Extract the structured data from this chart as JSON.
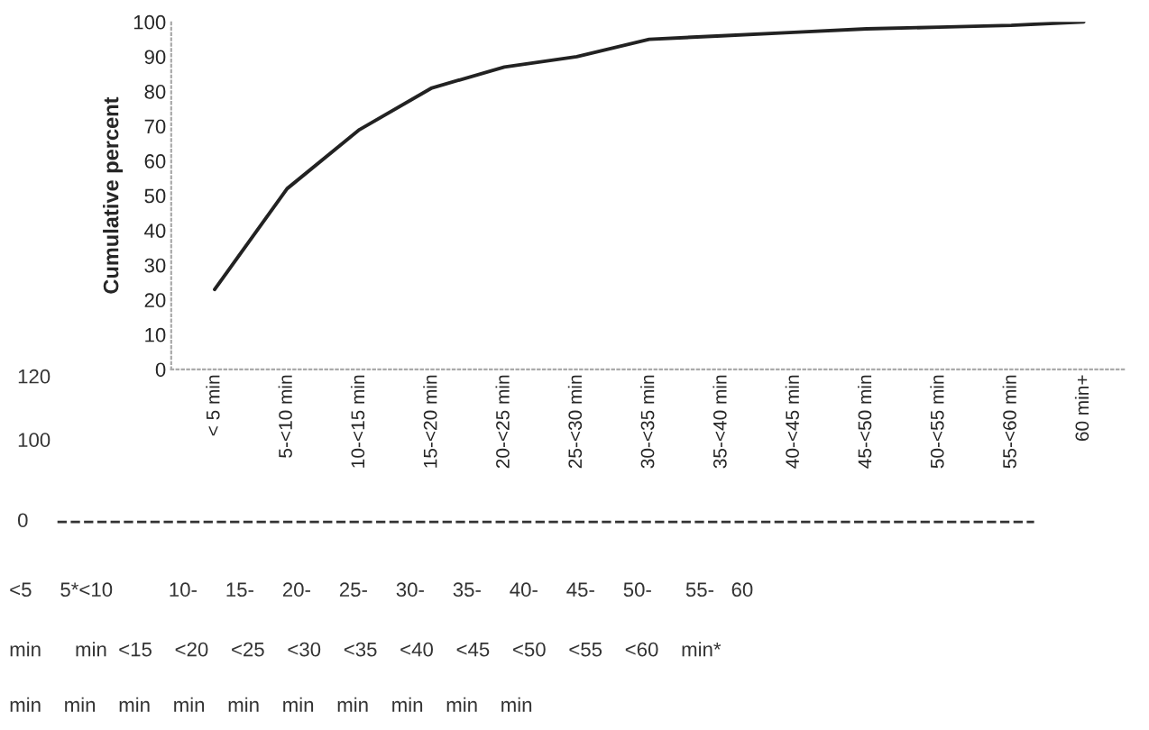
{
  "chart_data": {
    "type": "line",
    "ylabel": "Cumulative percent",
    "categories": [
      "< 5 min",
      "5-<10 min",
      "10-<15 min",
      "15-<20 min",
      "20-<25 min",
      "25-<30 min",
      "30-<35 min",
      "35-<40 min",
      "40-<45 min",
      "45-<50 min",
      "50-<55 min",
      "55-<60 min",
      "60 min+"
    ],
    "series": [
      {
        "color": "#222222",
        "values": [
          23,
          52,
          69,
          81,
          87,
          90,
          95,
          96,
          97,
          98,
          98.5,
          99,
          100
        ]
      }
    ],
    "ylim": [
      0,
      100
    ],
    "yticks": [
      0,
      10,
      20,
      30,
      40,
      50,
      60,
      70,
      80,
      90,
      100
    ],
    "grid": false,
    "legend": false,
    "marker": "none",
    "line_style": "solid",
    "annotations": [
      "120",
      "100",
      "0",
      "<5     5*<10          10-     15-     20-     25-     30-     35-     40-     45-     50-      55-   60",
      "min      min  <15    <20    <25    <30    <35    <40    <45    <50    <55    <60    min*",
      "min    min    min    min    min    min    min    min    min    min"
    ]
  }
}
